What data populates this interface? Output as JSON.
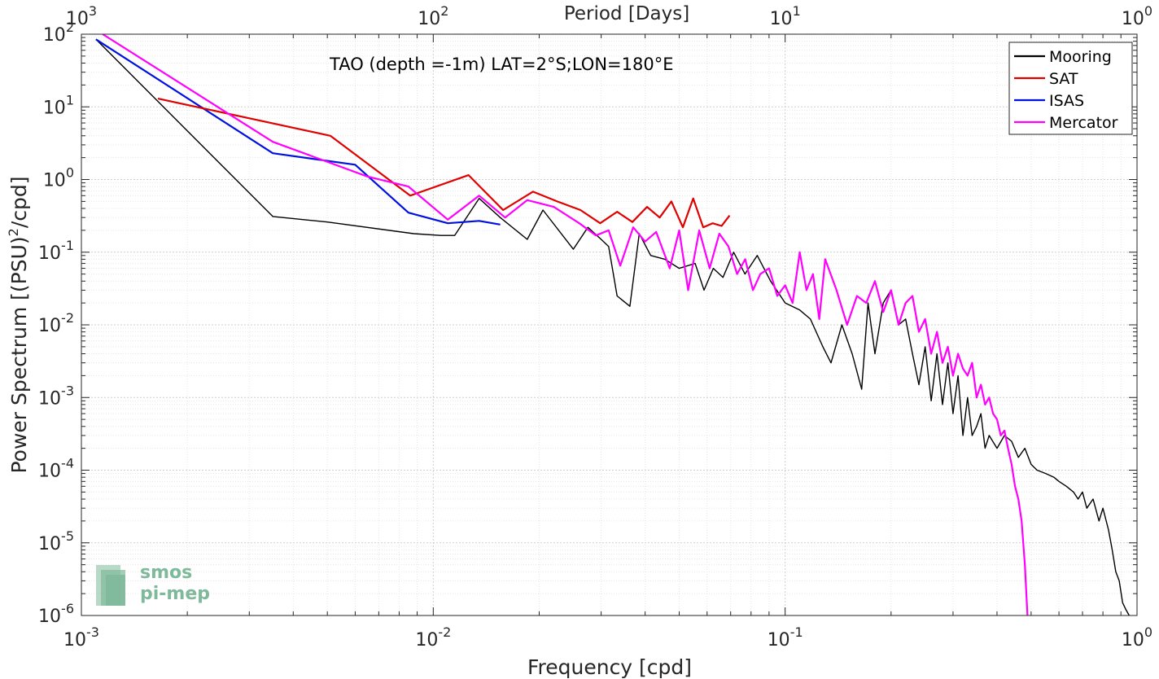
{
  "chart_data": {
    "type": "line",
    "annotation": "TAO (depth =-1m) LAT=2°S;LON=180°E",
    "xlabel": "Frequency [cpd]",
    "ylabel_main": "Power Spectrum [(PSU)",
    "ylabel_sup": "2",
    "ylabel_tail": "/cpd]",
    "top_xlabel": "Period [Days]",
    "x_scale": "log",
    "y_scale": "log",
    "xlim": [
      0.001,
      1
    ],
    "ylim": [
      1e-06,
      100
    ],
    "grid": true,
    "legend_position": "top-right",
    "x_ticks": [
      {
        "value": 0.001,
        "base": "10",
        "exp": "-3"
      },
      {
        "value": 0.01,
        "base": "10",
        "exp": "-2"
      },
      {
        "value": 0.1,
        "base": "10",
        "exp": "-1"
      },
      {
        "value": 1,
        "base": "10",
        "exp": "0"
      }
    ],
    "top_ticks": [
      {
        "value": 0.001,
        "base": "10",
        "exp": "3"
      },
      {
        "value": 0.01,
        "base": "10",
        "exp": "2"
      },
      {
        "value": 0.1,
        "base": "10",
        "exp": "1"
      },
      {
        "value": 1,
        "base": "10",
        "exp": "0"
      }
    ],
    "y_ticks": [
      {
        "value": 100,
        "base": "10",
        "exp": "2"
      },
      {
        "value": 10,
        "base": "10",
        "exp": "1"
      },
      {
        "value": 1,
        "base": "10",
        "exp": "0"
      },
      {
        "value": 0.1,
        "base": "10",
        "exp": "-1"
      },
      {
        "value": 0.01,
        "base": "10",
        "exp": "-2"
      },
      {
        "value": 0.001,
        "base": "10",
        "exp": "-3"
      },
      {
        "value": 0.0001,
        "base": "10",
        "exp": "-4"
      },
      {
        "value": 1e-05,
        "base": "10",
        "exp": "-5"
      },
      {
        "value": 1e-06,
        "base": "10",
        "exp": "-6"
      }
    ],
    "series": [
      {
        "name": "Mooring",
        "color": "#000000",
        "x": [
          0.0011,
          0.0035,
          0.005,
          0.0088,
          0.0105,
          0.0115,
          0.0135,
          0.0155,
          0.0185,
          0.0205,
          0.025,
          0.0275,
          0.03,
          0.0315,
          0.0333,
          0.0362,
          0.0385,
          0.0415,
          0.0455,
          0.05,
          0.0555,
          0.0588,
          0.0625,
          0.0666,
          0.0714,
          0.0769,
          0.0833,
          0.0909,
          0.1,
          0.11,
          0.118,
          0.128,
          0.135,
          0.145,
          0.155,
          0.165,
          0.172,
          0.18,
          0.19,
          0.2,
          0.21,
          0.22,
          0.23,
          0.24,
          0.25,
          0.26,
          0.27,
          0.28,
          0.29,
          0.3,
          0.31,
          0.32,
          0.33,
          0.34,
          0.35,
          0.36,
          0.37,
          0.38,
          0.4,
          0.42,
          0.44,
          0.46,
          0.48,
          0.5,
          0.52,
          0.55,
          0.58,
          0.6,
          0.63,
          0.66,
          0.68,
          0.7,
          0.72,
          0.75,
          0.78,
          0.8,
          0.83,
          0.85,
          0.87,
          0.89,
          0.91,
          0.93,
          0.95
        ],
        "values": [
          85,
          0.31,
          0.26,
          0.18,
          0.17,
          0.17,
          0.55,
          0.3,
          0.15,
          0.38,
          0.11,
          0.22,
          0.15,
          0.12,
          0.025,
          0.018,
          0.18,
          0.09,
          0.08,
          0.06,
          0.07,
          0.03,
          0.06,
          0.045,
          0.1,
          0.05,
          0.09,
          0.04,
          0.02,
          0.016,
          0.012,
          0.005,
          0.003,
          0.01,
          0.004,
          0.0013,
          0.02,
          0.004,
          0.02,
          0.03,
          0.01,
          0.012,
          0.004,
          0.0015,
          0.005,
          0.0009,
          0.004,
          0.0008,
          0.003,
          0.0006,
          0.002,
          0.0003,
          0.001,
          0.0003,
          0.0004,
          0.0006,
          0.0002,
          0.0003,
          0.0002,
          0.0003,
          0.00025,
          0.00015,
          0.0002,
          0.00012,
          0.0001,
          9e-05,
          8e-05,
          7e-05,
          6e-05,
          5e-05,
          4e-05,
          5e-05,
          3e-05,
          4e-05,
          2e-05,
          3e-05,
          1.5e-05,
          8e-06,
          4e-06,
          3e-06,
          1.5e-06,
          1.2e-06,
          1e-06
        ]
      },
      {
        "name": "SAT",
        "color": "#e00000",
        "x": [
          0.00165,
          0.0051,
          0.0086,
          0.0126,
          0.0158,
          0.0192,
          0.0225,
          0.0262,
          0.0298,
          0.0333,
          0.0368,
          0.0405,
          0.044,
          0.0475,
          0.0512,
          0.0548,
          0.0585,
          0.0622,
          0.066,
          0.0695
        ],
        "values": [
          13,
          4,
          0.6,
          1.15,
          0.38,
          0.68,
          0.5,
          0.38,
          0.25,
          0.36,
          0.26,
          0.42,
          0.3,
          0.5,
          0.22,
          0.55,
          0.22,
          0.25,
          0.23,
          0.32
        ]
      },
      {
        "name": "ISAS",
        "color": "#0010e0",
        "x": [
          0.0011,
          0.0035,
          0.006,
          0.0085,
          0.011,
          0.0135,
          0.0155
        ],
        "values": [
          85,
          2.3,
          1.6,
          0.35,
          0.25,
          0.27,
          0.24
        ]
      },
      {
        "name": "Mercator",
        "color": "#ff00ff",
        "x": [
          0.00115,
          0.0035,
          0.0065,
          0.0085,
          0.011,
          0.0135,
          0.016,
          0.0185,
          0.022,
          0.026,
          0.029,
          0.0315,
          0.034,
          0.037,
          0.04,
          0.043,
          0.047,
          0.05,
          0.053,
          0.057,
          0.061,
          0.065,
          0.069,
          0.073,
          0.077,
          0.081,
          0.085,
          0.09,
          0.095,
          0.1,
          0.105,
          0.11,
          0.115,
          0.12,
          0.125,
          0.13,
          0.14,
          0.15,
          0.16,
          0.17,
          0.18,
          0.19,
          0.2,
          0.21,
          0.22,
          0.23,
          0.24,
          0.25,
          0.26,
          0.27,
          0.28,
          0.29,
          0.3,
          0.31,
          0.32,
          0.33,
          0.34,
          0.35,
          0.36,
          0.37,
          0.38,
          0.39,
          0.4,
          0.41,
          0.42,
          0.43,
          0.44,
          0.45,
          0.46,
          0.47,
          0.48,
          0.49
        ],
        "values": [
          100,
          3.3,
          1.1,
          0.8,
          0.28,
          0.6,
          0.3,
          0.52,
          0.42,
          0.25,
          0.17,
          0.2,
          0.065,
          0.22,
          0.14,
          0.19,
          0.06,
          0.2,
          0.03,
          0.2,
          0.06,
          0.18,
          0.12,
          0.05,
          0.08,
          0.03,
          0.05,
          0.06,
          0.025,
          0.035,
          0.02,
          0.1,
          0.03,
          0.05,
          0.012,
          0.08,
          0.03,
          0.01,
          0.025,
          0.02,
          0.04,
          0.015,
          0.03,
          0.01,
          0.02,
          0.025,
          0.008,
          0.012,
          0.004,
          0.008,
          0.003,
          0.005,
          0.002,
          0.004,
          0.0025,
          0.002,
          0.003,
          0.001,
          0.0015,
          0.0008,
          0.001,
          0.0006,
          0.0005,
          0.0003,
          0.00035,
          0.0002,
          0.00012,
          6e-05,
          4e-05,
          2e-05,
          5e-06,
          7e-07
        ]
      }
    ]
  },
  "logo": {
    "line1": "smos",
    "line2": "pi-mep",
    "color": "#7fb99a"
  }
}
